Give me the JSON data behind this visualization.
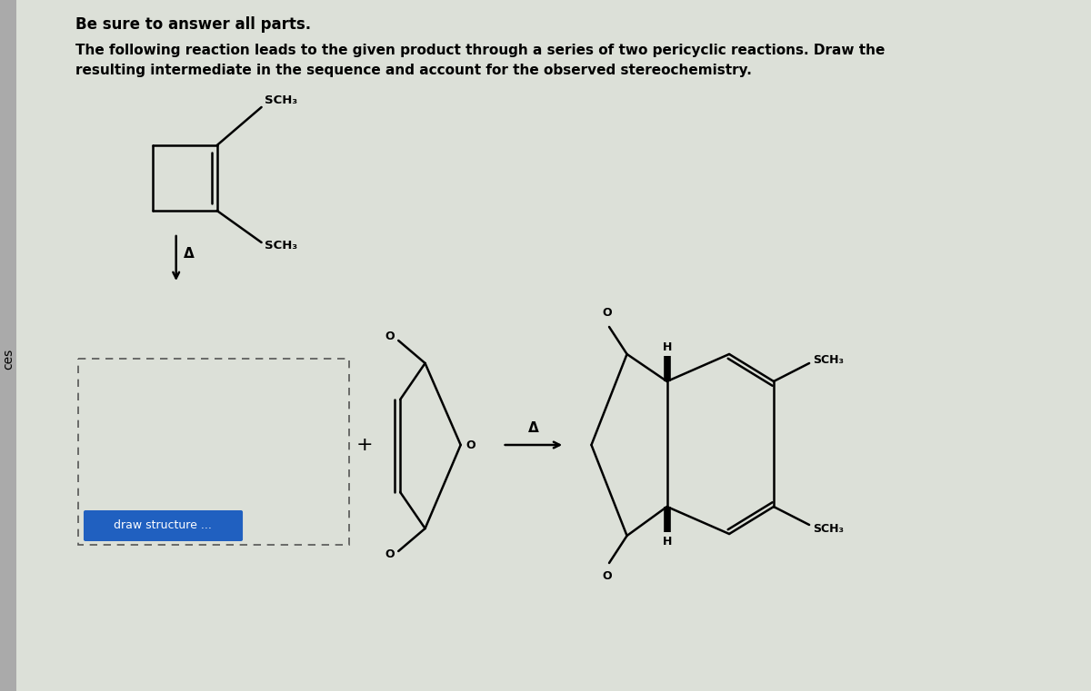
{
  "title_bold": "Be sure to answer all parts.",
  "body_text_line1": "The following reaction leads to the given product through a series of two pericyclic reactions. Draw the",
  "body_text_line2": "resulting intermediate in the sequence and account for the observed stereochemistry.",
  "background_color": "#dce0d8",
  "text_color": "#111111",
  "left_bar_color": "#b0b0b0",
  "ces_text_color": "#111111",
  "btn_color": "#2060c0",
  "btn_text": "draw structure ...",
  "plus_sign": "+",
  "delta_symbol": "Δ",
  "SCH3_label": "SCH₃",
  "O_label": "O",
  "H_label": "H"
}
